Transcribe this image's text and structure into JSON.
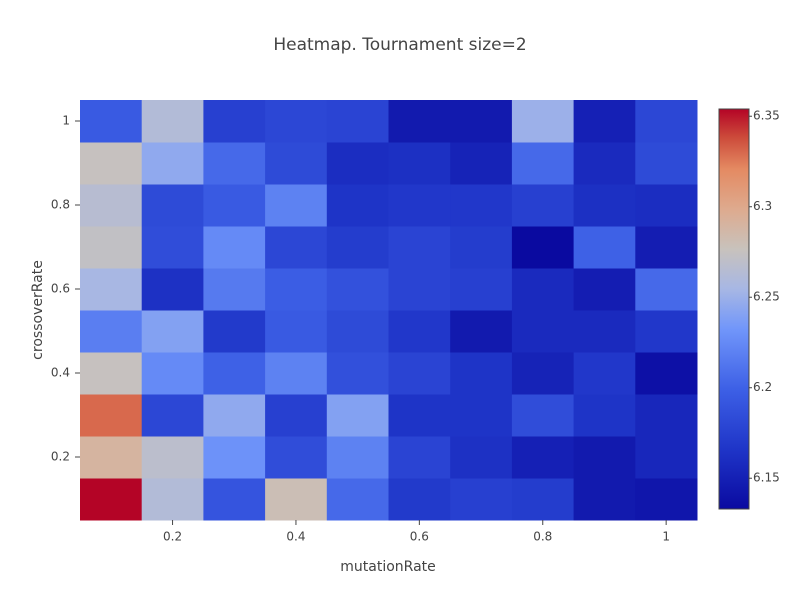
{
  "chart_data": {
    "type": "heatmap",
    "title": "Heatmap. Tournament size=2",
    "x_label": "mutationRate",
    "y_label": "crossoverRate",
    "x": [
      0.1,
      0.2,
      0.3,
      0.4,
      0.5,
      0.6,
      0.7,
      0.8,
      0.9,
      1.0
    ],
    "y": [
      0.1,
      0.2,
      0.3,
      0.4,
      0.5,
      0.6,
      0.7,
      0.8,
      0.9,
      1.0
    ],
    "z": [
      [
        6.354,
        6.262,
        6.19,
        6.28,
        6.205,
        6.17,
        6.175,
        6.172,
        6.145,
        6.142
      ],
      [
        6.29,
        6.268,
        6.23,
        6.185,
        6.22,
        6.178,
        6.163,
        6.15,
        6.145,
        6.155
      ],
      [
        6.33,
        6.18,
        6.245,
        6.175,
        6.24,
        6.165,
        6.165,
        6.185,
        6.165,
        6.155
      ],
      [
        6.275,
        6.225,
        6.2,
        6.22,
        6.187,
        6.178,
        6.165,
        6.152,
        6.168,
        6.138
      ],
      [
        6.218,
        6.24,
        6.17,
        6.195,
        6.183,
        6.168,
        6.145,
        6.158,
        6.158,
        6.168
      ],
      [
        6.255,
        6.163,
        6.215,
        6.197,
        6.188,
        6.178,
        6.175,
        6.158,
        6.148,
        6.205
      ],
      [
        6.272,
        6.185,
        6.225,
        6.18,
        6.172,
        6.178,
        6.172,
        6.133,
        6.2,
        6.148
      ],
      [
        6.265,
        6.183,
        6.195,
        6.22,
        6.165,
        6.168,
        6.168,
        6.175,
        6.162,
        6.16
      ],
      [
        6.275,
        6.245,
        6.205,
        6.183,
        6.16,
        6.162,
        6.152,
        6.205,
        6.158,
        6.183
      ],
      [
        6.195,
        6.262,
        6.175,
        6.18,
        6.178,
        6.145,
        6.145,
        6.25,
        6.15,
        6.18
      ]
    ],
    "xlim": [
      0.05,
      1.05
    ],
    "ylim": [
      0.05,
      1.05
    ],
    "xticks": [
      0.2,
      0.4,
      0.6,
      0.8,
      1
    ],
    "yticks": [
      0.2,
      0.4,
      0.6,
      0.8,
      1
    ],
    "zlim": [
      6.133,
      6.354
    ],
    "zticks": [
      6.15,
      6.2,
      6.25,
      6.3,
      6.35
    ],
    "colorscale": [
      [
        0,
        "#0a0aa0"
      ],
      [
        0.15,
        "#1f35c8"
      ],
      [
        0.3,
        "#3d60e6"
      ],
      [
        0.45,
        "#7196fa"
      ],
      [
        0.55,
        "#a7b7e4"
      ],
      [
        0.65,
        "#c8c2bc"
      ],
      [
        0.75,
        "#deaa8e"
      ],
      [
        0.85,
        "#e48a62"
      ],
      [
        0.93,
        "#cc4a3a"
      ],
      [
        1,
        "#b40426"
      ]
    ]
  }
}
